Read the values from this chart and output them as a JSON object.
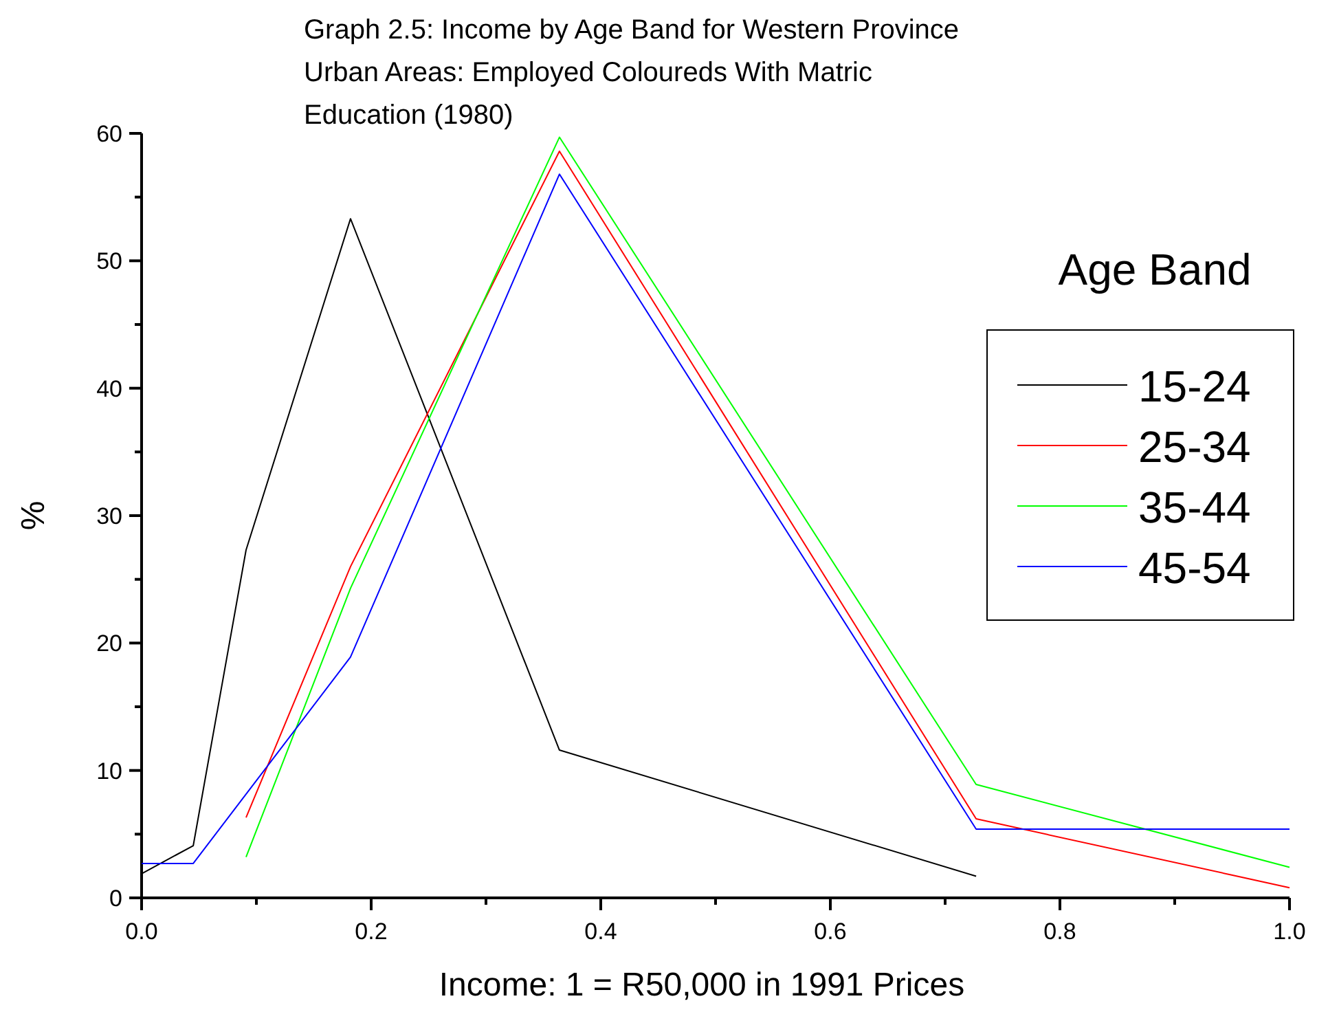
{
  "chart_data": {
    "type": "line",
    "title": "Graph 2.5: Income by Age Band for Western Province Urban Areas: Employed Coloureds With Matric Education (1980)",
    "xlabel": "Income: 1 = R50,000 in 1991 Prices",
    "ylabel": "%",
    "legend_title": "Age Band",
    "legend": "right",
    "grid": false,
    "marker": "none",
    "line_style": "solid",
    "xlim": [
      0,
      1
    ],
    "ylim": [
      0,
      60
    ],
    "xticks": [
      {
        "value": 0,
        "label": "0.0"
      },
      {
        "value": 0.1,
        "label": null
      },
      {
        "value": 0.2,
        "label": "0.2"
      },
      {
        "value": 0.3,
        "label": null
      },
      {
        "value": 0.4,
        "label": "0.4"
      },
      {
        "value": 0.5,
        "label": null
      },
      {
        "value": 0.6,
        "label": "0.6"
      },
      {
        "value": 0.7,
        "label": null
      },
      {
        "value": 0.8,
        "label": "0.8"
      },
      {
        "value": 0.9,
        "label": null
      },
      {
        "value": 1,
        "label": "1.0"
      }
    ],
    "yticks": [
      0,
      {
        "value": 5,
        "label": null
      },
      10,
      {
        "value": 15,
        "label": null
      },
      20,
      {
        "value": 25,
        "label": null
      },
      30,
      {
        "value": 35,
        "label": null
      },
      40,
      {
        "value": 45,
        "label": null
      },
      50,
      {
        "value": 55,
        "label": null
      },
      60
    ],
    "series": [
      {
        "name": "15-24",
        "color": "#000000",
        "x": [
          0,
          0.045,
          0.091,
          0.182,
          0.364,
          0.727
        ],
        "values": [
          1.9,
          4.1,
          27.3,
          53.3,
          11.6,
          1.7
        ]
      },
      {
        "name": "25-34",
        "color": "#ff0000",
        "x": [
          0.091,
          0.182,
          0.364,
          0.727,
          1
        ],
        "values": [
          6.3,
          26,
          58.6,
          6.2,
          0.8
        ]
      },
      {
        "name": "35-44",
        "color": "#00ff00",
        "x": [
          0.091,
          0.182,
          0.364,
          0.727,
          1
        ],
        "values": [
          3.2,
          24.3,
          59.7,
          8.9,
          2.4
        ]
      },
      {
        "name": "45-54",
        "color": "#0000ff",
        "x": [
          0,
          0.045,
          0.182,
          0.364,
          0.727,
          1
        ],
        "values": [
          2.7,
          2.7,
          18.9,
          56.8,
          5.4,
          5.4
        ]
      }
    ]
  }
}
